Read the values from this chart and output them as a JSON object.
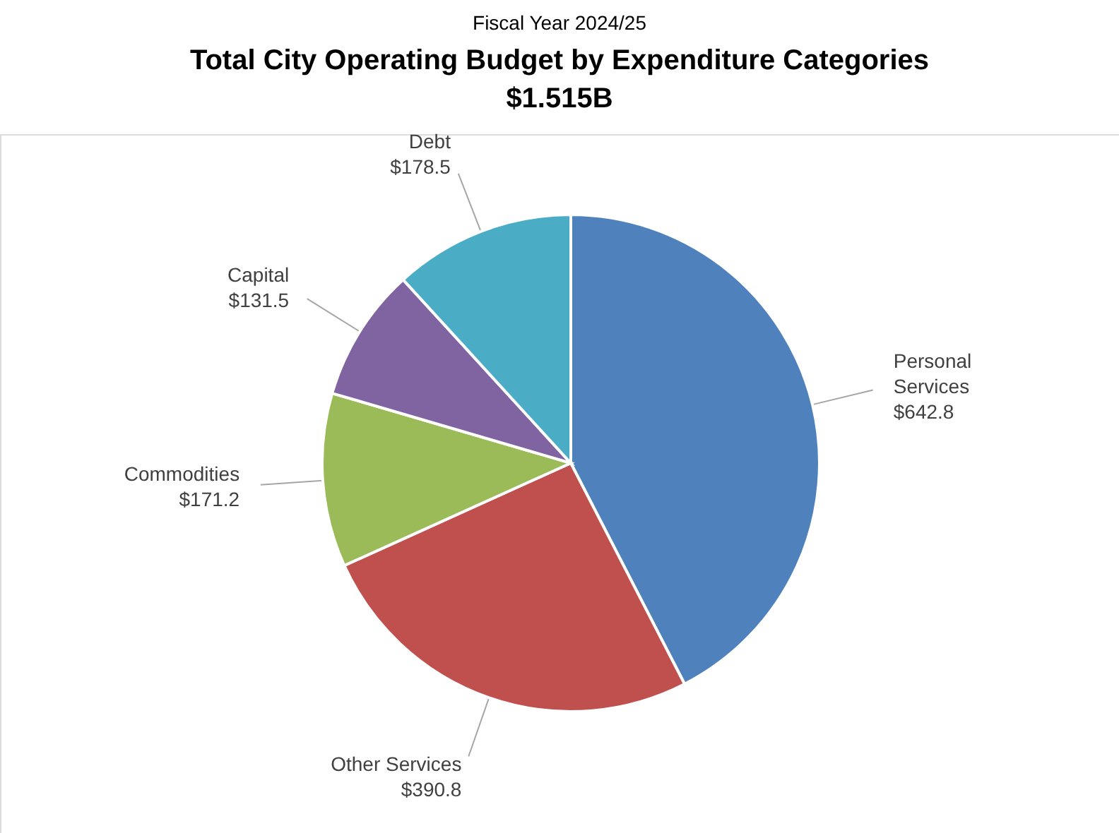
{
  "chart_data": {
    "type": "pie",
    "title": "Total City Operating Budget by Expenditure Categories",
    "subtitle": "$1.515B",
    "annotations": [
      "Fiscal Year 2024/25"
    ],
    "categories": [
      "Personal Services",
      "Other Services",
      "Commodities",
      "Capital",
      "Debt"
    ],
    "values": [
      642.8,
      390.8,
      171.2,
      131.5,
      178.5
    ],
    "value_labels": [
      "$642.8",
      "$390.8",
      "$171.2",
      "$131.5",
      "$178.5"
    ],
    "colors": [
      "#4f81bd",
      "#c0504d",
      "#9bbb59",
      "#8064a2",
      "#4bacc6"
    ],
    "legend": false
  }
}
